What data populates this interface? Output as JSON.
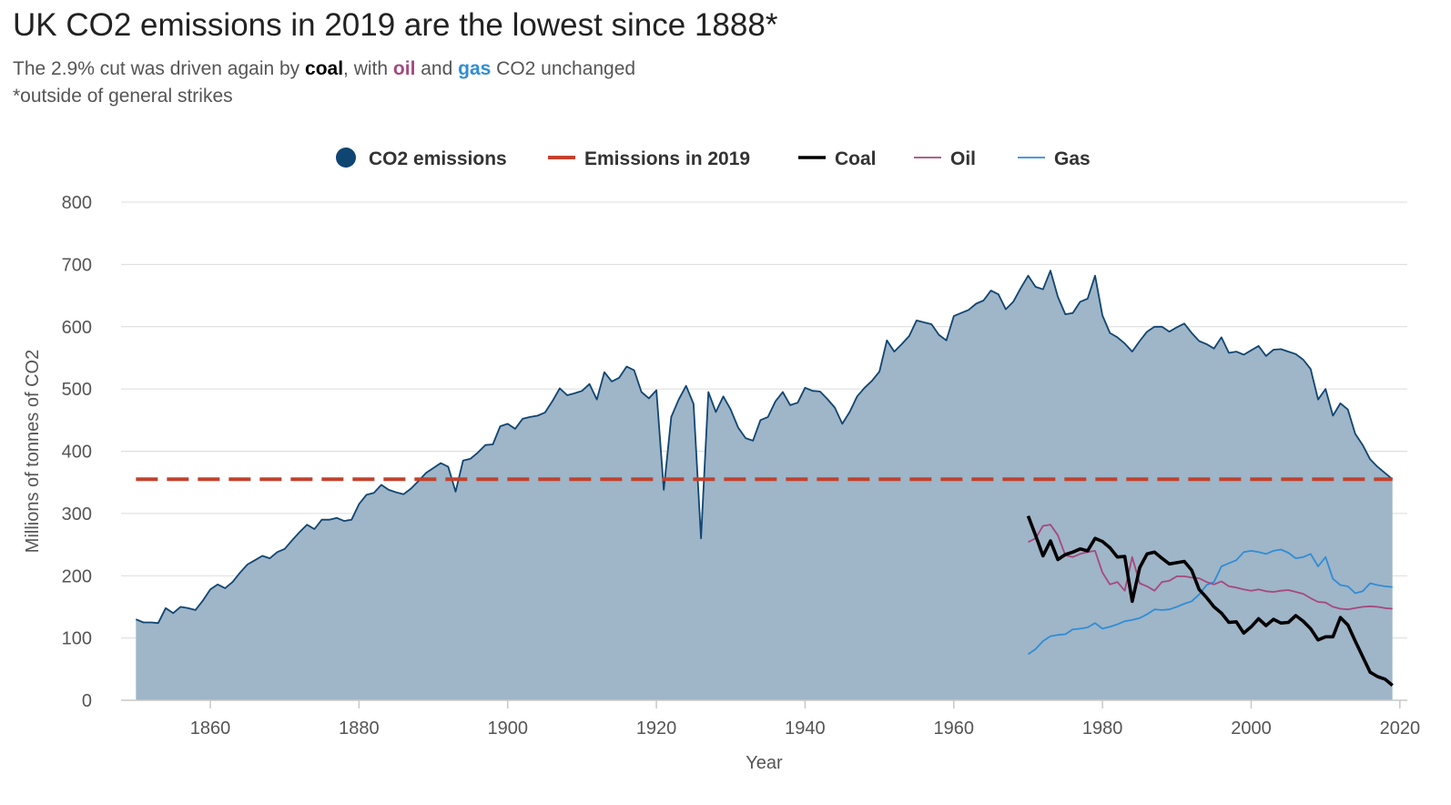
{
  "header": {
    "title": "UK CO2 emissions in 2019 are the lowest since 1888*",
    "subtitle_pre": "The 2.9% cut was driven again by ",
    "subtitle_coal": "coal",
    "subtitle_mid1": ", with ",
    "subtitle_oil": "oil",
    "subtitle_mid2": " and ",
    "subtitle_gas": "gas",
    "subtitle_post": " CO2 unchanged",
    "footnote": "*outside of general strikes"
  },
  "chart_data": {
    "type": "area",
    "xlabel": "Year",
    "ylabel": "Millions of tonnes of CO2",
    "xlim": [
      1848,
      2021
    ],
    "ylim": [
      0,
      800
    ],
    "grid": true,
    "legend_placement": "top-center",
    "x_ticks": [
      1860,
      1880,
      1900,
      1920,
      1940,
      1960,
      1980,
      2000,
      2020
    ],
    "y_ticks": [
      0,
      100,
      200,
      300,
      400,
      500,
      600,
      700,
      800
    ],
    "legend": [
      {
        "label": "CO2 emissions",
        "marker": "dot",
        "color": "#0f4571"
      },
      {
        "label": "Emissions in 2019",
        "marker": "dash",
        "color": "#c3412c"
      },
      {
        "label": "Coal",
        "marker": "line-thick",
        "color": "#000000"
      },
      {
        "label": "Oil",
        "marker": "line",
        "color": "#a5497d"
      },
      {
        "label": "Gas",
        "marker": "line",
        "color": "#2f8dd6"
      }
    ],
    "reference_line": {
      "name": "Emissions in 2019",
      "value": 355,
      "color": "#c3412c"
    },
    "colors": {
      "area_fill": "#9fb5c8",
      "area_line": "#0f4571",
      "coal": "#000000",
      "oil": "#a5497d",
      "gas": "#2f8dd6"
    },
    "series": [
      {
        "name": "CO2 emissions",
        "x_start": 1850,
        "values": [
          130,
          125,
          125,
          124,
          148,
          140,
          150,
          148,
          145,
          160,
          178,
          186,
          180,
          190,
          205,
          218,
          225,
          232,
          228,
          238,
          243,
          257,
          270,
          282,
          275,
          290,
          290,
          293,
          288,
          290,
          315,
          330,
          333,
          346,
          338,
          334,
          331,
          340,
          352,
          365,
          373,
          381,
          375,
          335,
          385,
          388,
          398,
          410,
          411,
          440,
          444,
          436,
          452,
          455,
          457,
          462,
          480,
          501,
          490,
          493,
          497,
          508,
          483,
          527,
          512,
          518,
          536,
          530,
          495,
          485,
          498,
          338,
          455,
          483,
          505,
          476,
          260,
          495,
          463,
          488,
          467,
          438,
          421,
          417,
          450,
          455,
          480,
          495,
          474,
          478,
          502,
          497,
          496,
          484,
          470,
          444,
          463,
          488,
          502,
          513,
          528,
          578,
          560,
          572,
          585,
          610,
          607,
          604,
          587,
          578,
          617,
          622,
          627,
          637,
          642,
          658,
          652,
          628,
          640,
          662,
          682,
          664,
          660,
          690,
          648,
          620,
          622,
          640,
          645,
          682,
          618,
          590,
          583,
          573,
          560,
          577,
          592,
          600,
          600,
          592,
          599,
          605,
          590,
          577,
          572,
          565,
          583,
          558,
          560,
          555,
          562,
          569,
          553,
          563,
          564,
          560,
          556,
          547,
          532,
          483,
          500,
          457,
          477,
          467,
          428,
          410,
          387,
          375,
          365,
          355
        ]
      },
      {
        "name": "Coal",
        "x_start": 1970,
        "values": [
          296,
          265,
          232,
          256,
          226,
          234,
          238,
          243,
          240,
          260,
          255,
          245,
          230,
          231,
          159,
          213,
          235,
          238,
          228,
          219,
          221,
          223,
          209,
          178,
          165,
          150,
          140,
          125,
          126,
          108,
          118,
          131,
          120,
          130,
          124,
          125,
          136,
          127,
          115,
          97,
          102,
          102,
          133,
          121,
          95,
          70,
          45,
          38,
          34,
          24
        ]
      },
      {
        "name": "Oil",
        "x_start": 1970,
        "values": [
          254,
          260,
          280,
          282,
          265,
          233,
          230,
          235,
          238,
          240,
          205,
          186,
          190,
          176,
          230,
          188,
          183,
          176,
          190,
          192,
          199,
          199,
          197,
          196,
          190,
          186,
          191,
          183,
          181,
          178,
          176,
          178,
          175,
          174,
          176,
          177,
          174,
          171,
          164,
          158,
          157,
          150,
          147,
          146,
          148,
          150,
          151,
          150,
          148,
          147
        ]
      },
      {
        "name": "Gas",
        "x_start": 1970,
        "values": [
          74,
          82,
          95,
          103,
          105,
          106,
          114,
          115,
          117,
          124,
          115,
          118,
          122,
          127,
          129,
          132,
          138,
          146,
          145,
          146,
          150,
          155,
          159,
          170,
          185,
          190,
          215,
          220,
          225,
          238,
          240,
          238,
          235,
          240,
          242,
          237,
          228,
          230,
          235,
          215,
          230,
          195,
          185,
          183,
          172,
          175,
          188,
          185,
          183,
          182
        ]
      }
    ]
  }
}
